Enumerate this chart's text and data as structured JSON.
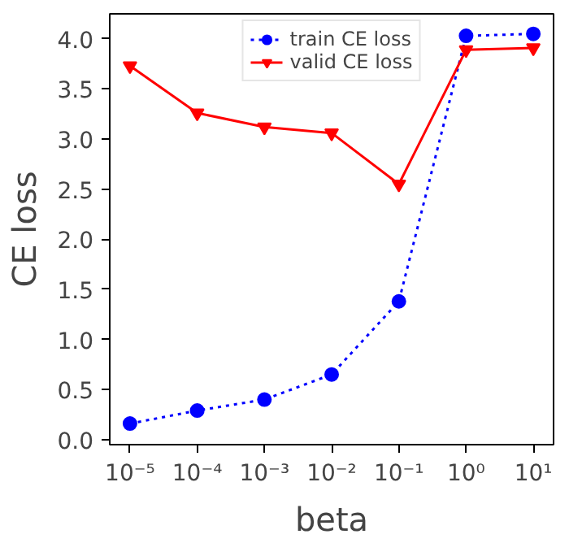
{
  "chart_data": {
    "type": "line",
    "xlabel": "beta",
    "ylabel": "CE loss",
    "log": "x",
    "x": [
      1e-05,
      0.0001,
      0.001,
      0.01,
      0.1,
      1,
      10
    ],
    "xlim": [
      5e-06,
      20.0
    ],
    "xticks": [
      {
        "value": 1e-05,
        "label": "10⁻⁵"
      },
      {
        "value": 0.0001,
        "label": "10⁻⁴"
      },
      {
        "value": 0.001,
        "label": "10⁻³"
      },
      {
        "value": 0.01,
        "label": "10⁻²"
      },
      {
        "value": 0.1,
        "label": "10⁻¹"
      },
      {
        "value": 1,
        "label": "10⁰"
      },
      {
        "value": 10,
        "label": "10¹"
      }
    ],
    "ylim": [
      -0.05,
      4.25
    ],
    "yticks": [
      {
        "value": 0,
        "label": "0.0"
      },
      {
        "value": 0.5,
        "label": "0.5"
      },
      {
        "value": 1,
        "label": "1.0"
      },
      {
        "value": 1.5,
        "label": "1.5"
      },
      {
        "value": 2,
        "label": "2.0"
      },
      {
        "value": 2.5,
        "label": "2.5"
      },
      {
        "value": 3,
        "label": "3.0"
      },
      {
        "value": 3.5,
        "label": "3.5"
      },
      {
        "value": 4,
        "label": "4.0"
      }
    ],
    "grid": false,
    "legend": "top center",
    "series": [
      {
        "name": "train CE loss",
        "color": "#0000ff",
        "marker": "circle",
        "line_style": "dotted",
        "values": [
          0.16,
          0.29,
          0.4,
          0.65,
          1.38,
          4.03,
          4.05
        ]
      },
      {
        "name": "valid CE loss",
        "color": "#ff0000",
        "marker": "triangle_down",
        "line_style": "solid",
        "values": [
          3.73,
          3.26,
          3.12,
          3.06,
          2.55,
          3.89,
          3.91
        ]
      }
    ]
  }
}
